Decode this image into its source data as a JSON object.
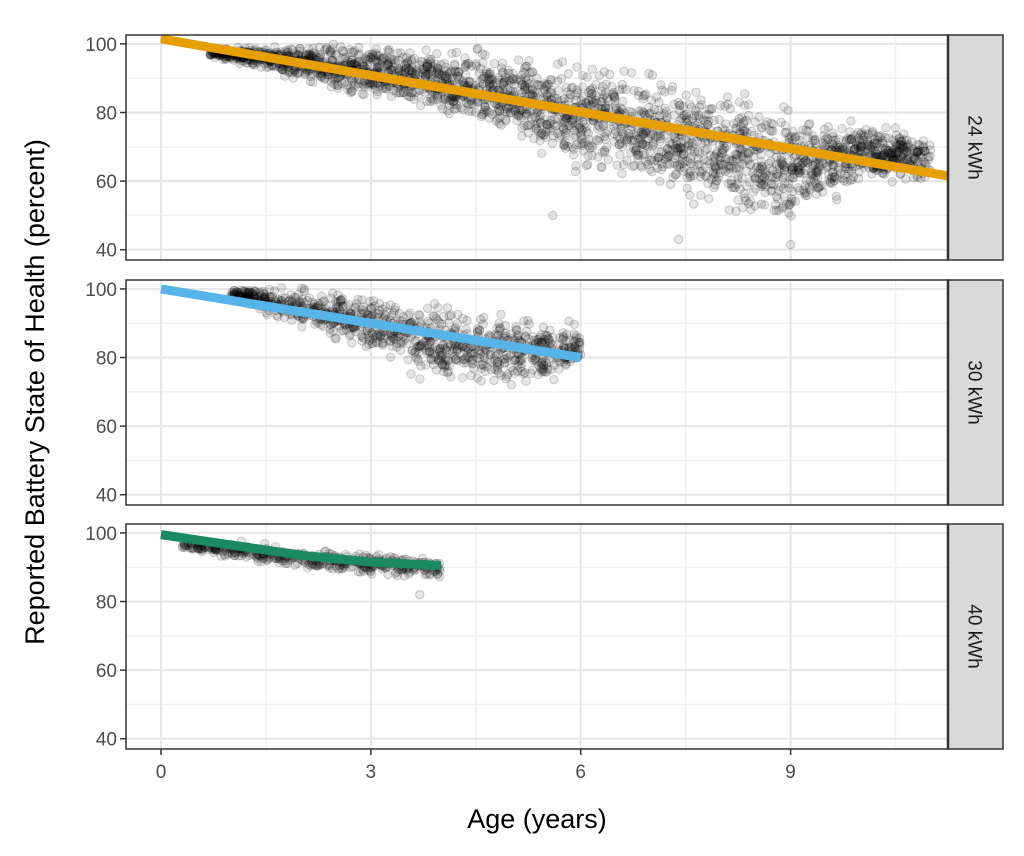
{
  "chart_data": {
    "type": "scatter",
    "xlabel": "Age (years)",
    "ylabel": "Reported Battery State of Health (percent)",
    "xlim": [
      -0.5,
      11.25
    ],
    "ylim": [
      37,
      102.6
    ],
    "x_ticks": [
      "0",
      "3",
      "6",
      "9"
    ],
    "y_ticks": [
      "40",
      "60",
      "80",
      "100"
    ],
    "grid": true,
    "facets": [
      {
        "label": "24 kWh",
        "fit_color": "#E69F00",
        "fit_line": {
          "x": [
            0,
            11.25
          ],
          "y": [
            101.5,
            61.5
          ]
        },
        "point_range": [
          {
            "x": 0.7,
            "ymin": 96,
            "ymax": 99
          },
          {
            "x": 1.5,
            "ymin": 92,
            "ymax": 100
          },
          {
            "x": 2,
            "ymin": 88,
            "ymax": 101
          },
          {
            "x": 3,
            "ymin": 82,
            "ymax": 101
          },
          {
            "x": 4,
            "ymin": 77,
            "ymax": 101
          },
          {
            "x": 5,
            "ymin": 70,
            "ymax": 100
          },
          {
            "x": 5.5,
            "ymin": 62,
            "ymax": 99
          },
          {
            "x": 6,
            "ymin": 60,
            "ymax": 98
          },
          {
            "x": 7,
            "ymin": 55,
            "ymax": 95
          },
          {
            "x": 8,
            "ymin": 48,
            "ymax": 90
          },
          {
            "x": 9,
            "ymin": 42,
            "ymax": 85
          },
          {
            "x": 10,
            "ymin": 58,
            "ymax": 79
          },
          {
            "x": 11,
            "ymin": 58,
            "ymax": 75
          }
        ],
        "outliers": [
          {
            "x": 5.6,
            "y": 50
          },
          {
            "x": 7.4,
            "y": 43
          },
          {
            "x": 9,
            "y": 41.5
          }
        ]
      },
      {
        "label": "30 kWh",
        "fit_color": "#56B4E9",
        "fit_line": {
          "x": [
            0,
            6
          ],
          "y": [
            100,
            80
          ]
        },
        "point_range": [
          {
            "x": 1,
            "ymin": 96,
            "ymax": 101
          },
          {
            "x": 2,
            "ymin": 88,
            "ymax": 101
          },
          {
            "x": 3,
            "ymin": 80,
            "ymax": 100
          },
          {
            "x": 4,
            "ymin": 70,
            "ymax": 97
          },
          {
            "x": 5,
            "ymin": 68,
            "ymax": 95
          },
          {
            "x": 6,
            "ymin": 74,
            "ymax": 92
          }
        ],
        "outliers": []
      },
      {
        "label": "40 kWh",
        "fit_color": "#1B8A62",
        "fit_line": {
          "x": [
            0,
            1,
            2,
            3,
            4
          ],
          "y": [
            99.5,
            96.5,
            93.5,
            91.5,
            90.5
          ]
        },
        "point_range": [
          {
            "x": 0.3,
            "ymin": 94,
            "ymax": 99
          },
          {
            "x": 1,
            "ymin": 92,
            "ymax": 98
          },
          {
            "x": 2,
            "ymin": 89,
            "ymax": 96
          },
          {
            "x": 3,
            "ymin": 87,
            "ymax": 95
          },
          {
            "x": 4,
            "ymin": 86,
            "ymax": 94
          }
        ],
        "outliers": [
          {
            "x": 3.7,
            "y": 82
          }
        ]
      }
    ]
  }
}
